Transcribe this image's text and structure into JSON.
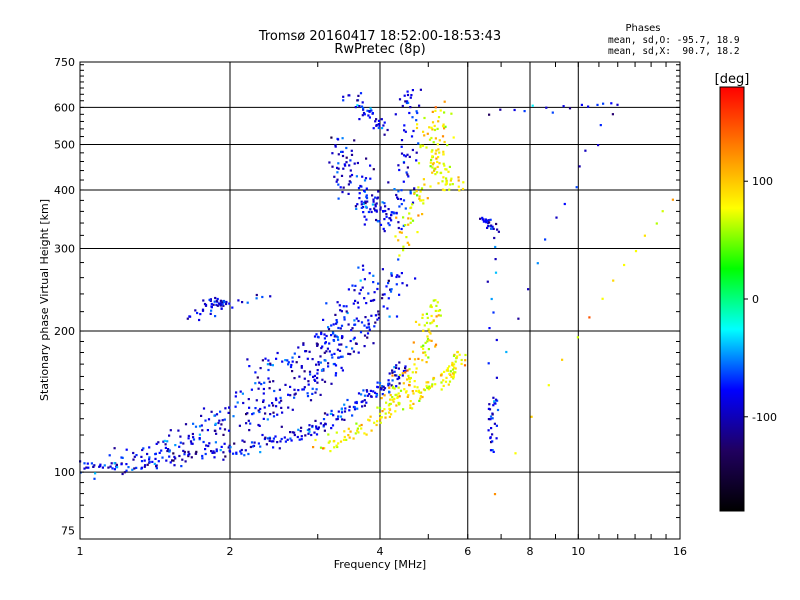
{
  "chart_data": {
    "type": "scatter",
    "title": "Tromsø 20160417 18:52:00-18:53:43",
    "subtitle": "RwPretec (8p)",
    "xlabel": "Frequency [MHz]",
    "ylabel": "Stationary phase Virtual Height [km]",
    "x_scale": "log",
    "y_scale": "log",
    "xlim": [
      1,
      16
    ],
    "ylim": [
      72,
      750
    ],
    "x_ticks": [
      1,
      2,
      4,
      6,
      8,
      10,
      16
    ],
    "y_ticks": [
      75,
      100,
      200,
      300,
      400,
      500,
      600,
      750
    ],
    "grid": true,
    "phase_box": {
      "heading": "Phases",
      "line_o": "mean, sd,O: -95.7, 18.9",
      "line_x": "mean, sd,X:  90.7, 18.2"
    },
    "colorbar": {
      "label": "[deg]",
      "range": [
        -180,
        180
      ],
      "ticks": [
        100,
        0,
        -100
      ],
      "colors": [
        "#ff0000",
        "#ff8000",
        "#ffff00",
        "#00ff00",
        "#00ffff",
        "#0000ff",
        "#200060",
        "#000000"
      ]
    },
    "series": [
      {
        "mode": "O",
        "phase": -95.7,
        "traces": [
          {
            "points": [
              [
                1.0,
                103
              ],
              [
                1.1,
                102
              ],
              [
                1.2,
                103
              ],
              [
                1.35,
                105
              ],
              [
                1.5,
                107
              ],
              [
                1.7,
                108
              ],
              [
                1.9,
                110
              ],
              [
                2.1,
                112
              ],
              [
                2.3,
                114
              ],
              [
                2.5,
                117
              ],
              [
                2.7,
                120
              ],
              [
                2.9,
                123
              ],
              [
                3.1,
                127
              ],
              [
                3.3,
                132
              ],
              [
                3.5,
                137
              ],
              [
                3.7,
                142
              ],
              [
                3.9,
                148
              ],
              [
                4.1,
                153
              ],
              [
                4.3,
                160
              ],
              [
                4.45,
                170
              ]
            ],
            "spread": 0.02
          },
          {
            "points": [
              [
                1.2,
                106
              ],
              [
                1.4,
                110
              ],
              [
                1.6,
                115
              ],
              [
                1.8,
                120
              ],
              [
                2.0,
                125
              ],
              [
                2.2,
                131
              ],
              [
                2.4,
                137
              ],
              [
                2.6,
                143
              ],
              [
                2.8,
                150
              ],
              [
                3.0,
                158
              ],
              [
                3.2,
                167
              ],
              [
                3.4,
                178
              ],
              [
                3.6,
                190
              ],
              [
                3.8,
                205
              ],
              [
                4.0,
                222
              ],
              [
                4.2,
                242
              ],
              [
                4.4,
                265
              ]
            ],
            "spread": 0.035
          },
          {
            "points": [
              [
                1.3,
                110
              ],
              [
                1.6,
                120
              ],
              [
                1.9,
                132
              ],
              [
                2.2,
                145
              ],
              [
                2.5,
                155
              ],
              [
                2.8,
                165
              ],
              [
                3.1,
                180
              ],
              [
                3.3,
                200
              ],
              [
                3.5,
                220
              ],
              [
                3.7,
                245
              ],
              [
                3.9,
                270
              ]
            ],
            "spread": 0.04
          },
          {
            "points": [
              [
                2.2,
                165
              ],
              [
                2.6,
                175
              ],
              [
                3.0,
                185
              ],
              [
                3.2,
                200
              ],
              [
                3.4,
                215
              ]
            ],
            "spread": 0.03
          },
          {
            "points": [
              [
                3.3,
                520
              ],
              [
                3.5,
                470
              ],
              [
                3.7,
                420
              ],
              [
                3.9,
                380
              ],
              [
                4.1,
                350
              ],
              [
                4.3,
                340
              ],
              [
                4.4,
                380
              ],
              [
                4.5,
                430
              ],
              [
                4.55,
                500
              ],
              [
                4.6,
                600
              ],
              [
                4.6,
                650
              ]
            ],
            "spread": 0.03
          },
          {
            "points": [
              [
                3.2,
                470
              ],
              [
                3.4,
                420
              ],
              [
                3.6,
                380
              ],
              [
                3.8,
                360
              ],
              [
                4.0,
                350
              ]
            ],
            "spread": 0.03
          },
          {
            "points": [
              [
                3.5,
                640
              ],
              [
                3.7,
                600
              ],
              [
                3.9,
                560
              ],
              [
                4.1,
                540
              ]
            ],
            "spread": 0.025
          },
          {
            "points": [
              [
                1.8,
                228
              ],
              [
                1.9,
                230
              ],
              [
                1.95,
                232
              ],
              [
                1.65,
                213
              ],
              [
                2.4,
                238
              ]
            ],
            "spread": 0.012
          },
          {
            "points": [
              [
                6.4,
                350
              ],
              [
                6.6,
                340
              ],
              [
                6.8,
                330
              ],
              [
                6.75,
                110
              ],
              [
                6.7,
                130
              ],
              [
                6.8,
                145
              ],
              [
                12.0,
                610
              ],
              [
                6.6,
                590
              ]
            ],
            "spread": 0.01
          }
        ]
      },
      {
        "mode": "X",
        "phase": 90.7,
        "traces": [
          {
            "points": [
              [
                3.0,
                112
              ],
              [
                3.3,
                117
              ],
              [
                3.6,
                122
              ],
              [
                3.9,
                130
              ],
              [
                4.2,
                136
              ],
              [
                4.5,
                142
              ],
              [
                4.8,
                148
              ],
              [
                5.1,
                153
              ],
              [
                5.4,
                158
              ],
              [
                5.6,
                163
              ],
              [
                5.7,
                170
              ],
              [
                5.75,
                180
              ]
            ],
            "spread": 0.02
          },
          {
            "points": [
              [
                4.1,
                140
              ],
              [
                4.3,
                148
              ],
              [
                4.5,
                158
              ],
              [
                4.7,
                170
              ],
              [
                4.9,
                185
              ],
              [
                5.0,
                200
              ],
              [
                5.1,
                215
              ],
              [
                5.2,
                230
              ]
            ],
            "spread": 0.03
          },
          {
            "points": [
              [
                4.4,
                300
              ],
              [
                4.6,
                340
              ],
              [
                4.8,
                380
              ],
              [
                5.0,
                420
              ],
              [
                5.2,
                470
              ],
              [
                5.35,
                540
              ],
              [
                5.45,
                620
              ]
            ],
            "spread": 0.03
          },
          {
            "points": [
              [
                4.9,
                560
              ],
              [
                5.1,
                500
              ],
              [
                5.3,
                450
              ],
              [
                5.5,
                420
              ],
              [
                5.7,
                400
              ]
            ],
            "spread": 0.025
          },
          {
            "points": [
              [
                15.5,
                380
              ],
              [
                6.8,
                90
              ]
            ],
            "spread": 0.005
          }
        ]
      }
    ]
  }
}
